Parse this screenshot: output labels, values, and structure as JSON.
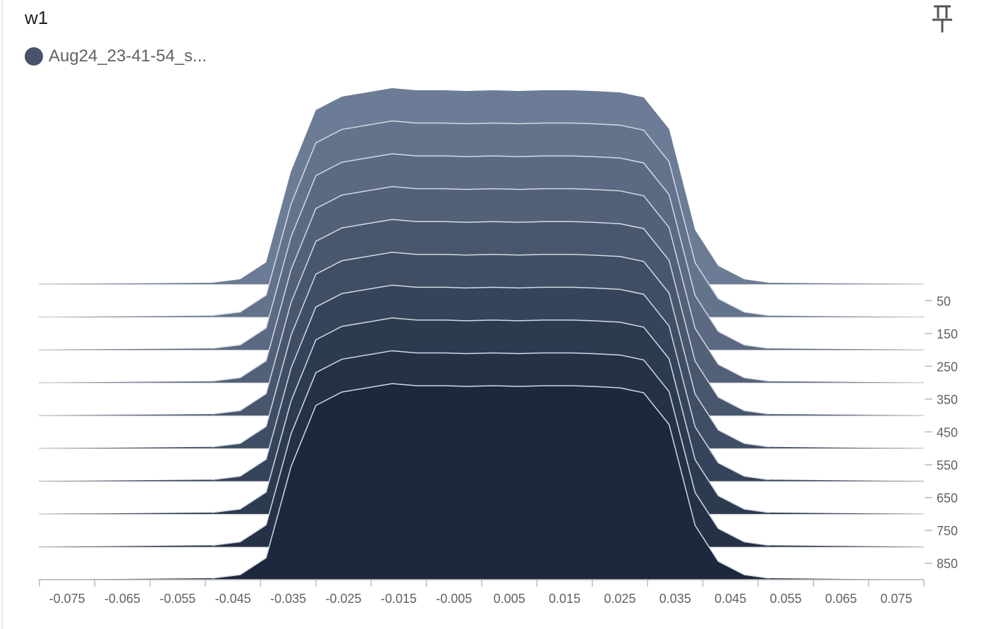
{
  "card": {
    "title": "w1",
    "pin_icon": "pin-icon"
  },
  "legend": {
    "run_label": "Aug24_23-41-54_s...",
    "color": "#46546e"
  },
  "chart_data": {
    "type": "area",
    "subtype": "ridgeline-histogram",
    "title": "w1",
    "x": [
      -0.08,
      -0.0488,
      -0.0437,
      -0.039,
      -0.0345,
      -0.03,
      -0.0253,
      -0.0162,
      -0.0118,
      -0.0067,
      -0.0029,
      0.0022,
      0.0067,
      0.0112,
      0.0163,
      0.0201,
      0.025,
      0.0293,
      0.0339,
      0.0386,
      0.0428,
      0.0475,
      0.052,
      0.08
    ],
    "xlim": [
      -0.08,
      0.08
    ],
    "x_tick_labels": [
      "-0.075",
      "-0.065",
      "-0.055",
      "-0.045",
      "-0.035",
      "-0.025",
      "-0.015",
      "-0.005",
      "0.005",
      "0.015",
      "0.025",
      "0.035",
      "0.045",
      "0.055",
      "0.065",
      "0.075"
    ],
    "y_tick_labels": [
      "50",
      "150",
      "250",
      "350",
      "450",
      "550",
      "650",
      "750",
      "850"
    ],
    "series": [
      {
        "step": 0,
        "values": [
          0,
          2,
          7,
          31,
          160,
          247,
          266,
          278,
          275,
          275,
          274,
          275,
          274,
          275,
          275,
          274,
          272,
          265,
          220,
          77,
          26,
          7,
          2,
          0
        ]
      },
      {
        "step": 100,
        "values": [
          0,
          2,
          7,
          31,
          160,
          247,
          266,
          278,
          275,
          275,
          274,
          275,
          274,
          275,
          275,
          274,
          272,
          265,
          220,
          77,
          26,
          7,
          2,
          0
        ]
      },
      {
        "step": 200,
        "values": [
          0,
          2,
          7,
          31,
          160,
          247,
          266,
          278,
          275,
          275,
          274,
          275,
          274,
          275,
          275,
          274,
          272,
          265,
          220,
          77,
          26,
          7,
          2,
          0
        ]
      },
      {
        "step": 300,
        "values": [
          0,
          2,
          7,
          31,
          160,
          247,
          266,
          278,
          275,
          275,
          274,
          275,
          274,
          275,
          275,
          274,
          272,
          265,
          220,
          77,
          26,
          7,
          2,
          0
        ]
      },
      {
        "step": 400,
        "values": [
          0,
          2,
          7,
          31,
          160,
          247,
          266,
          278,
          275,
          275,
          274,
          275,
          274,
          275,
          275,
          274,
          272,
          265,
          220,
          77,
          26,
          7,
          2,
          0
        ]
      },
      {
        "step": 500,
        "values": [
          0,
          2,
          7,
          31,
          160,
          247,
          266,
          278,
          275,
          275,
          274,
          275,
          274,
          275,
          275,
          274,
          272,
          265,
          220,
          77,
          26,
          7,
          2,
          0
        ]
      },
      {
        "step": 600,
        "values": [
          0,
          2,
          7,
          31,
          160,
          247,
          266,
          278,
          275,
          275,
          274,
          275,
          274,
          275,
          275,
          274,
          272,
          265,
          220,
          77,
          26,
          7,
          2,
          0
        ]
      },
      {
        "step": 700,
        "values": [
          0,
          2,
          7,
          31,
          160,
          247,
          266,
          278,
          275,
          275,
          274,
          275,
          274,
          275,
          275,
          274,
          272,
          265,
          220,
          77,
          26,
          7,
          2,
          0
        ]
      },
      {
        "step": 800,
        "values": [
          0,
          2,
          7,
          31,
          160,
          247,
          266,
          278,
          275,
          275,
          274,
          275,
          274,
          275,
          275,
          274,
          272,
          265,
          220,
          77,
          26,
          7,
          2,
          0
        ]
      },
      {
        "step": 900,
        "values": [
          0,
          2,
          7,
          31,
          160,
          247,
          266,
          278,
          275,
          275,
          274,
          275,
          274,
          275,
          275,
          274,
          272,
          265,
          220,
          77,
          26,
          7,
          2,
          0
        ]
      }
    ],
    "colors": {
      "back": "#6d7c96",
      "front": "#1b283d",
      "ridge_line": "#d3d9e3"
    },
    "legend_position": "top-left"
  }
}
